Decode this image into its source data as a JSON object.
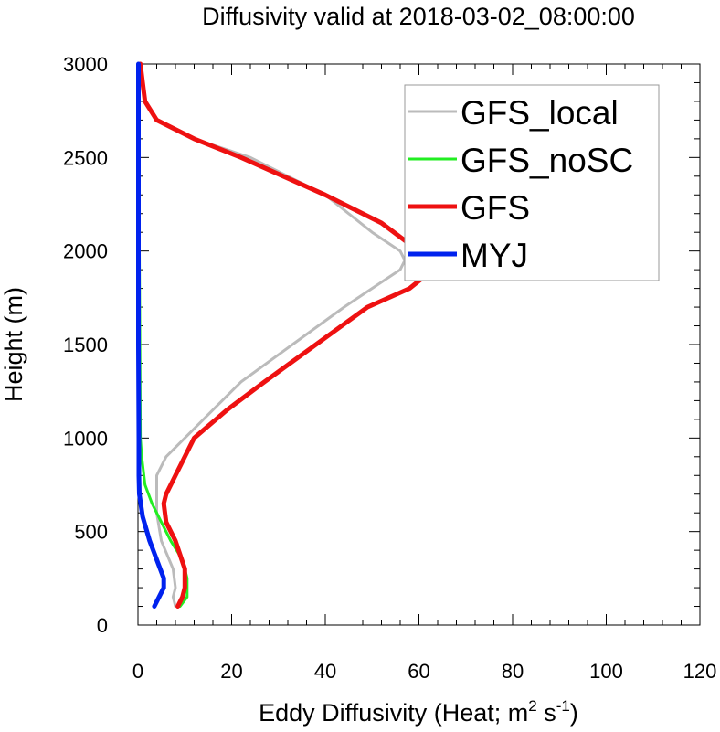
{
  "chart_data": {
    "type": "line",
    "title": "Diffusivity valid at 2018-03-02_08:00:00",
    "xlabel": "Eddy Diffusivity (Heat; m",
    "xlabel_sup1": "2",
    "xlabel_mid": " s",
    "xlabel_sup2": "-1",
    "xlabel_end": ")",
    "ylabel": "Height (m)",
    "xlim": [
      0,
      120
    ],
    "ylim": [
      0,
      3000
    ],
    "xticks": [
      "0",
      "20",
      "40",
      "60",
      "80",
      "100",
      "120"
    ],
    "yticks": [
      "0",
      "500",
      "1000",
      "1500",
      "2000",
      "2500",
      "3000"
    ],
    "grid": false,
    "legend_position": "top-right",
    "series": [
      {
        "name": "GFS_local",
        "color": "#bbbbbb",
        "width": 3,
        "points": [
          [
            8,
            100
          ],
          [
            7.5,
            150
          ],
          [
            8,
            200
          ],
          [
            7.5,
            300
          ],
          [
            5,
            450
          ],
          [
            4,
            600
          ],
          [
            4,
            800
          ],
          [
            6,
            900
          ],
          [
            10,
            1000
          ],
          [
            16,
            1150
          ],
          [
            22,
            1300
          ],
          [
            33,
            1500
          ],
          [
            44,
            1700
          ],
          [
            56,
            1900
          ],
          [
            57,
            1950
          ],
          [
            56,
            2000
          ],
          [
            50,
            2100
          ],
          [
            40,
            2300
          ],
          [
            24,
            2500
          ],
          [
            12,
            2600
          ],
          [
            4,
            2700
          ],
          [
            1.5,
            2800
          ],
          [
            1,
            2900
          ],
          [
            0.5,
            3000
          ]
        ]
      },
      {
        "name": "GFS_noSC",
        "color": "#22ee22",
        "width": 3,
        "points": [
          [
            9,
            100
          ],
          [
            10.5,
            150
          ],
          [
            10.5,
            250
          ],
          [
            9.5,
            350
          ],
          [
            7,
            450
          ],
          [
            5,
            550
          ],
          [
            3,
            650
          ],
          [
            1.5,
            750
          ],
          [
            0.8,
            900
          ],
          [
            0.5,
            1000
          ],
          [
            0.4,
            1500
          ],
          [
            0.3,
            2000
          ],
          [
            0.3,
            2500
          ],
          [
            0.2,
            3000
          ]
        ]
      },
      {
        "name": "GFS",
        "color": "#ee1111",
        "width": 5,
        "points": [
          [
            8.5,
            100
          ],
          [
            9.5,
            150
          ],
          [
            10,
            200
          ],
          [
            10,
            300
          ],
          [
            8,
            450
          ],
          [
            6,
            550
          ],
          [
            5.5,
            650
          ],
          [
            6,
            700
          ],
          [
            8,
            800
          ],
          [
            12,
            1000
          ],
          [
            19,
            1150
          ],
          [
            27,
            1300
          ],
          [
            38,
            1500
          ],
          [
            49,
            1700
          ],
          [
            58,
            1800
          ],
          [
            63,
            1900
          ],
          [
            60,
            2000
          ],
          [
            52,
            2150
          ],
          [
            40,
            2300
          ],
          [
            22,
            2500
          ],
          [
            12,
            2600
          ],
          [
            4,
            2700
          ],
          [
            1.5,
            2800
          ],
          [
            1,
            2900
          ],
          [
            0.5,
            3000
          ]
        ]
      },
      {
        "name": "MYJ",
        "color": "#0022ee",
        "width": 5,
        "points": [
          [
            3.5,
            100
          ],
          [
            4.5,
            150
          ],
          [
            5.5,
            200
          ],
          [
            5.5,
            250
          ],
          [
            4,
            350
          ],
          [
            2.5,
            450
          ],
          [
            1,
            580
          ],
          [
            0.3,
            700
          ],
          [
            0.2,
            800
          ],
          [
            0.2,
            1000
          ],
          [
            0.1,
            1500
          ],
          [
            0.1,
            2000
          ],
          [
            0.1,
            2500
          ],
          [
            0.1,
            3000
          ]
        ]
      }
    ]
  }
}
